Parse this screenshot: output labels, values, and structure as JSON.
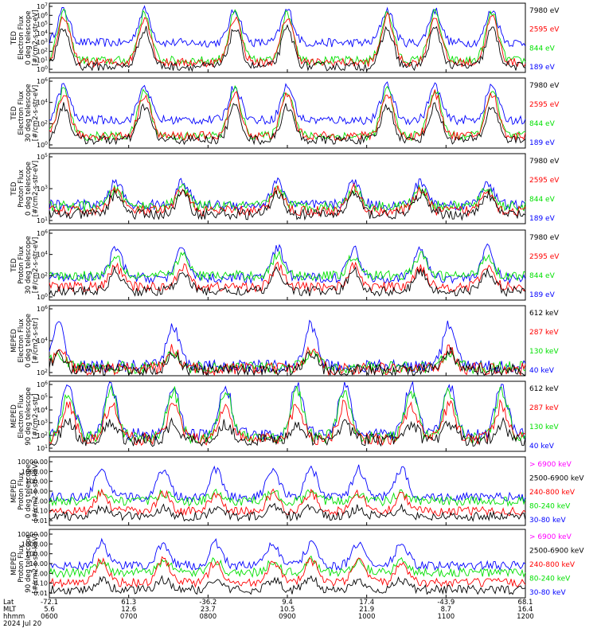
{
  "figure": {
    "date_label": "2024 Jul 20",
    "row_labels": [
      "Lat",
      "MLT",
      "hhmm"
    ],
    "ticks": [
      {
        "lat": "-72.1",
        "mlt": "5.6",
        "hhmm": "0600"
      },
      {
        "lat": "61.3",
        "mlt": "12.6",
        "hhmm": "0700"
      },
      {
        "lat": "-36.2",
        "mlt": "23.7",
        "hhmm": "0800"
      },
      {
        "lat": "9.4",
        "mlt": "10.5",
        "hhmm": "0900"
      },
      {
        "lat": "17.4",
        "mlt": "21.9",
        "hhmm": "1000"
      },
      {
        "lat": "-43.9",
        "mlt": "8.7",
        "hhmm": "1100"
      },
      {
        "lat": "68.1",
        "mlt": "16.4",
        "hhmm": "1200"
      }
    ]
  },
  "colors": {
    "black": "#000000",
    "red": "#ff0000",
    "green": "#00e000",
    "blue": "#0000ff",
    "magenta": "#ff00ff"
  },
  "chart_data": [
    {
      "type": "line",
      "ylabel": [
        "TED",
        "Electron Flux",
        "0 deg telescope",
        "[#/cm2-s-str-eV]"
      ],
      "log": true,
      "ytick_labels": [
        "10^0",
        "10^1",
        "10^2",
        "10^3",
        "10^4",
        "10^5",
        "10^6",
        "10^7"
      ],
      "ylim": [
        0,
        7
      ],
      "series": [
        {
          "name": "7980 eV",
          "color": "#000000"
        },
        {
          "name": "2595 eV",
          "color": "#ff0000"
        },
        {
          "name": "844 eV",
          "color": "#00e000"
        },
        {
          "name": "189 eV",
          "color": "#0000ff"
        }
      ],
      "bursts": [
        0.03,
        0.2,
        0.39,
        0.5,
        0.71,
        0.81,
        0.93
      ],
      "base": {
        "blue": 3.0,
        "green": 1.2,
        "red": 1.0,
        "black": 0.6
      },
      "peak": {
        "blue": 6.3,
        "green": 6.0,
        "red": 5.6,
        "black": 4.4
      }
    },
    {
      "type": "line",
      "ylabel": [
        "TED",
        "Electron Flux",
        "30 deg telescope",
        "[#/cm2-s-str-eV]"
      ],
      "log": true,
      "ytick_labels": [
        "10^0",
        "10^2",
        "10^4",
        "10^6"
      ],
      "ylim": [
        0,
        7
      ],
      "series": [
        {
          "name": "7980 eV",
          "color": "#000000"
        },
        {
          "name": "2595 eV",
          "color": "#ff0000"
        },
        {
          "name": "844 eV",
          "color": "#00e000"
        },
        {
          "name": "189 eV",
          "color": "#0000ff"
        }
      ],
      "bursts": [
        0.03,
        0.2,
        0.39,
        0.5,
        0.71,
        0.81,
        0.93
      ],
      "base": {
        "blue": 2.8,
        "green": 1.2,
        "red": 1.2,
        "black": 0.8
      },
      "peak": {
        "blue": 6.2,
        "green": 5.8,
        "red": 5.4,
        "black": 4.2
      }
    },
    {
      "type": "line",
      "ylabel": [
        "TED",
        "Proton Flux",
        "0 deg telescope",
        "[#/cm2-s-str-eV]"
      ],
      "log": true,
      "ytick_labels": [
        "10^1",
        "10^3",
        "10^5"
      ],
      "ylim": [
        0,
        6
      ],
      "series": [
        {
          "name": "7980 eV",
          "color": "#000000"
        },
        {
          "name": "2595 eV",
          "color": "#ff0000"
        },
        {
          "name": "844 eV",
          "color": "#00e000"
        },
        {
          "name": "189 eV",
          "color": "#0000ff"
        }
      ],
      "bursts": [
        0.14,
        0.28,
        0.48,
        0.64,
        0.78,
        0.92
      ],
      "base": {
        "blue": 1.6,
        "green": 1.5,
        "red": 1.1,
        "black": 0.8
      },
      "peak": {
        "blue": 3.6,
        "green": 3.0,
        "red": 3.0,
        "black": 2.6
      }
    },
    {
      "type": "line",
      "ylabel": [
        "TED",
        "Proton Flux",
        "30 deg telescope",
        "[#/cm2-s-str-eV]"
      ],
      "log": true,
      "ytick_labels": [
        "10^0",
        "10^2",
        "10^4",
        "10^6"
      ],
      "ylim": [
        0,
        6.3
      ],
      "series": [
        {
          "name": "7980 eV",
          "color": "#000000"
        },
        {
          "name": "2595 eV",
          "color": "#ff0000"
        },
        {
          "name": "844 eV",
          "color": "#00e000"
        },
        {
          "name": "189 eV",
          "color": "#0000ff"
        }
      ],
      "bursts": [
        0.14,
        0.28,
        0.48,
        0.64,
        0.78,
        0.92
      ],
      "base": {
        "blue": 2.0,
        "green": 2.2,
        "red": 1.2,
        "black": 0.8
      },
      "peak": {
        "blue": 4.6,
        "green": 4.0,
        "red": 3.0,
        "black": 2.6
      }
    },
    {
      "type": "line",
      "ylabel": [
        "MEPED",
        "Electron Flux",
        "0 deg telescope",
        "[#/cm2-s-str]"
      ],
      "log": true,
      "ytick_labels": [
        "10^2",
        "10^4",
        "10^6"
      ],
      "ylim": [
        1.5,
        6.6
      ],
      "series": [
        {
          "name": "612 keV",
          "color": "#000000"
        },
        {
          "name": "287 keV",
          "color": "#ff0000"
        },
        {
          "name": "130 keV",
          "color": "#00e000"
        },
        {
          "name": "40 keV",
          "color": "#0000ff"
        }
      ],
      "bursts": [
        0.02,
        0.26,
        0.55,
        0.84
      ],
      "base": {
        "blue": 2.2,
        "green": 2.1,
        "red": 2.0,
        "black": 1.9
      },
      "peak": {
        "blue": 5.2,
        "green": 3.2,
        "red": 3.4,
        "black": 3.2
      }
    },
    {
      "type": "line",
      "ylabel": [
        "MEPED",
        "Electron Flux",
        "90 deg telescope",
        "[#/cm2-s-str]"
      ],
      "log": true,
      "ytick_labels": [
        "10^1",
        "10^2",
        "10^3",
        "10^4",
        "10^5",
        "10^6"
      ],
      "ylim": [
        1,
        6
      ],
      "series": [
        {
          "name": "612 keV",
          "color": "#000000"
        },
        {
          "name": "287 keV",
          "color": "#ff0000"
        },
        {
          "name": "130 keV",
          "color": "#00e000"
        },
        {
          "name": "40 keV",
          "color": "#0000ff"
        }
      ],
      "bursts": [
        0.04,
        0.13,
        0.26,
        0.37,
        0.52,
        0.62,
        0.76,
        0.84,
        0.95
      ],
      "base": {
        "blue": 2.2,
        "green": 2.0,
        "red": 1.9,
        "black": 1.8
      },
      "peak": {
        "blue": 5.7,
        "green": 5.3,
        "red": 4.3,
        "black": 3.0
      }
    },
    {
      "type": "line",
      "ylabel": [
        "MEPED",
        "Proton Flux",
        "0 deg telescope",
        "[#/cm2-s-str-keV]"
      ],
      "log": true,
      "ytick_labels": [
        "10000.00",
        "1000.00",
        "100.00",
        "10.00",
        "1.00",
        "0.10",
        "0.01"
      ],
      "ylim": [
        -2.4,
        4.4
      ],
      "series": [
        {
          "name": "> 6900 keV",
          "color": "#ff00ff"
        },
        {
          "name": "2500-6900 keV",
          "color": "#000000"
        },
        {
          "name": "240-800 keV",
          "color": "#ff0000"
        },
        {
          "name": "80-240 keV",
          "color": "#00e000"
        },
        {
          "name": "30-80 keV",
          "color": "#0000ff"
        }
      ],
      "bursts": [
        0.11,
        0.24,
        0.35,
        0.47,
        0.55,
        0.65,
        0.74
      ],
      "base": {
        "blue": 0.4,
        "green": 0.0,
        "red": -1.0,
        "black": -1.5
      },
      "peak": {
        "blue": 3.2,
        "green": 0.8,
        "red": 0.8,
        "black": -0.6
      }
    },
    {
      "type": "line",
      "ylabel": [
        "MEPED",
        "Proton Flux",
        "90 deg telescope",
        "[#/cm2-s-str-keV]"
      ],
      "log": true,
      "ytick_labels": [
        "10000.00",
        "1000.00",
        "100.00",
        "10.00",
        "1.00",
        "0.10",
        "0.01"
      ],
      "ylim": [
        -2.4,
        4.4
      ],
      "series": [
        {
          "name": "> 6900 keV",
          "color": "#ff00ff"
        },
        {
          "name": "2500-6900 keV",
          "color": "#000000"
        },
        {
          "name": "240-800 keV",
          "color": "#ff0000"
        },
        {
          "name": "80-240 keV",
          "color": "#00e000"
        },
        {
          "name": "30-80 keV",
          "color": "#0000ff"
        }
      ],
      "bursts": [
        0.11,
        0.24,
        0.35,
        0.47,
        0.55,
        0.65,
        0.74
      ],
      "base": {
        "blue": 0.8,
        "green": 0.1,
        "red": -0.9,
        "black": -1.6
      },
      "peak": {
        "blue": 3.0,
        "green": 1.3,
        "red": 1.3,
        "black": -0.6
      }
    }
  ]
}
